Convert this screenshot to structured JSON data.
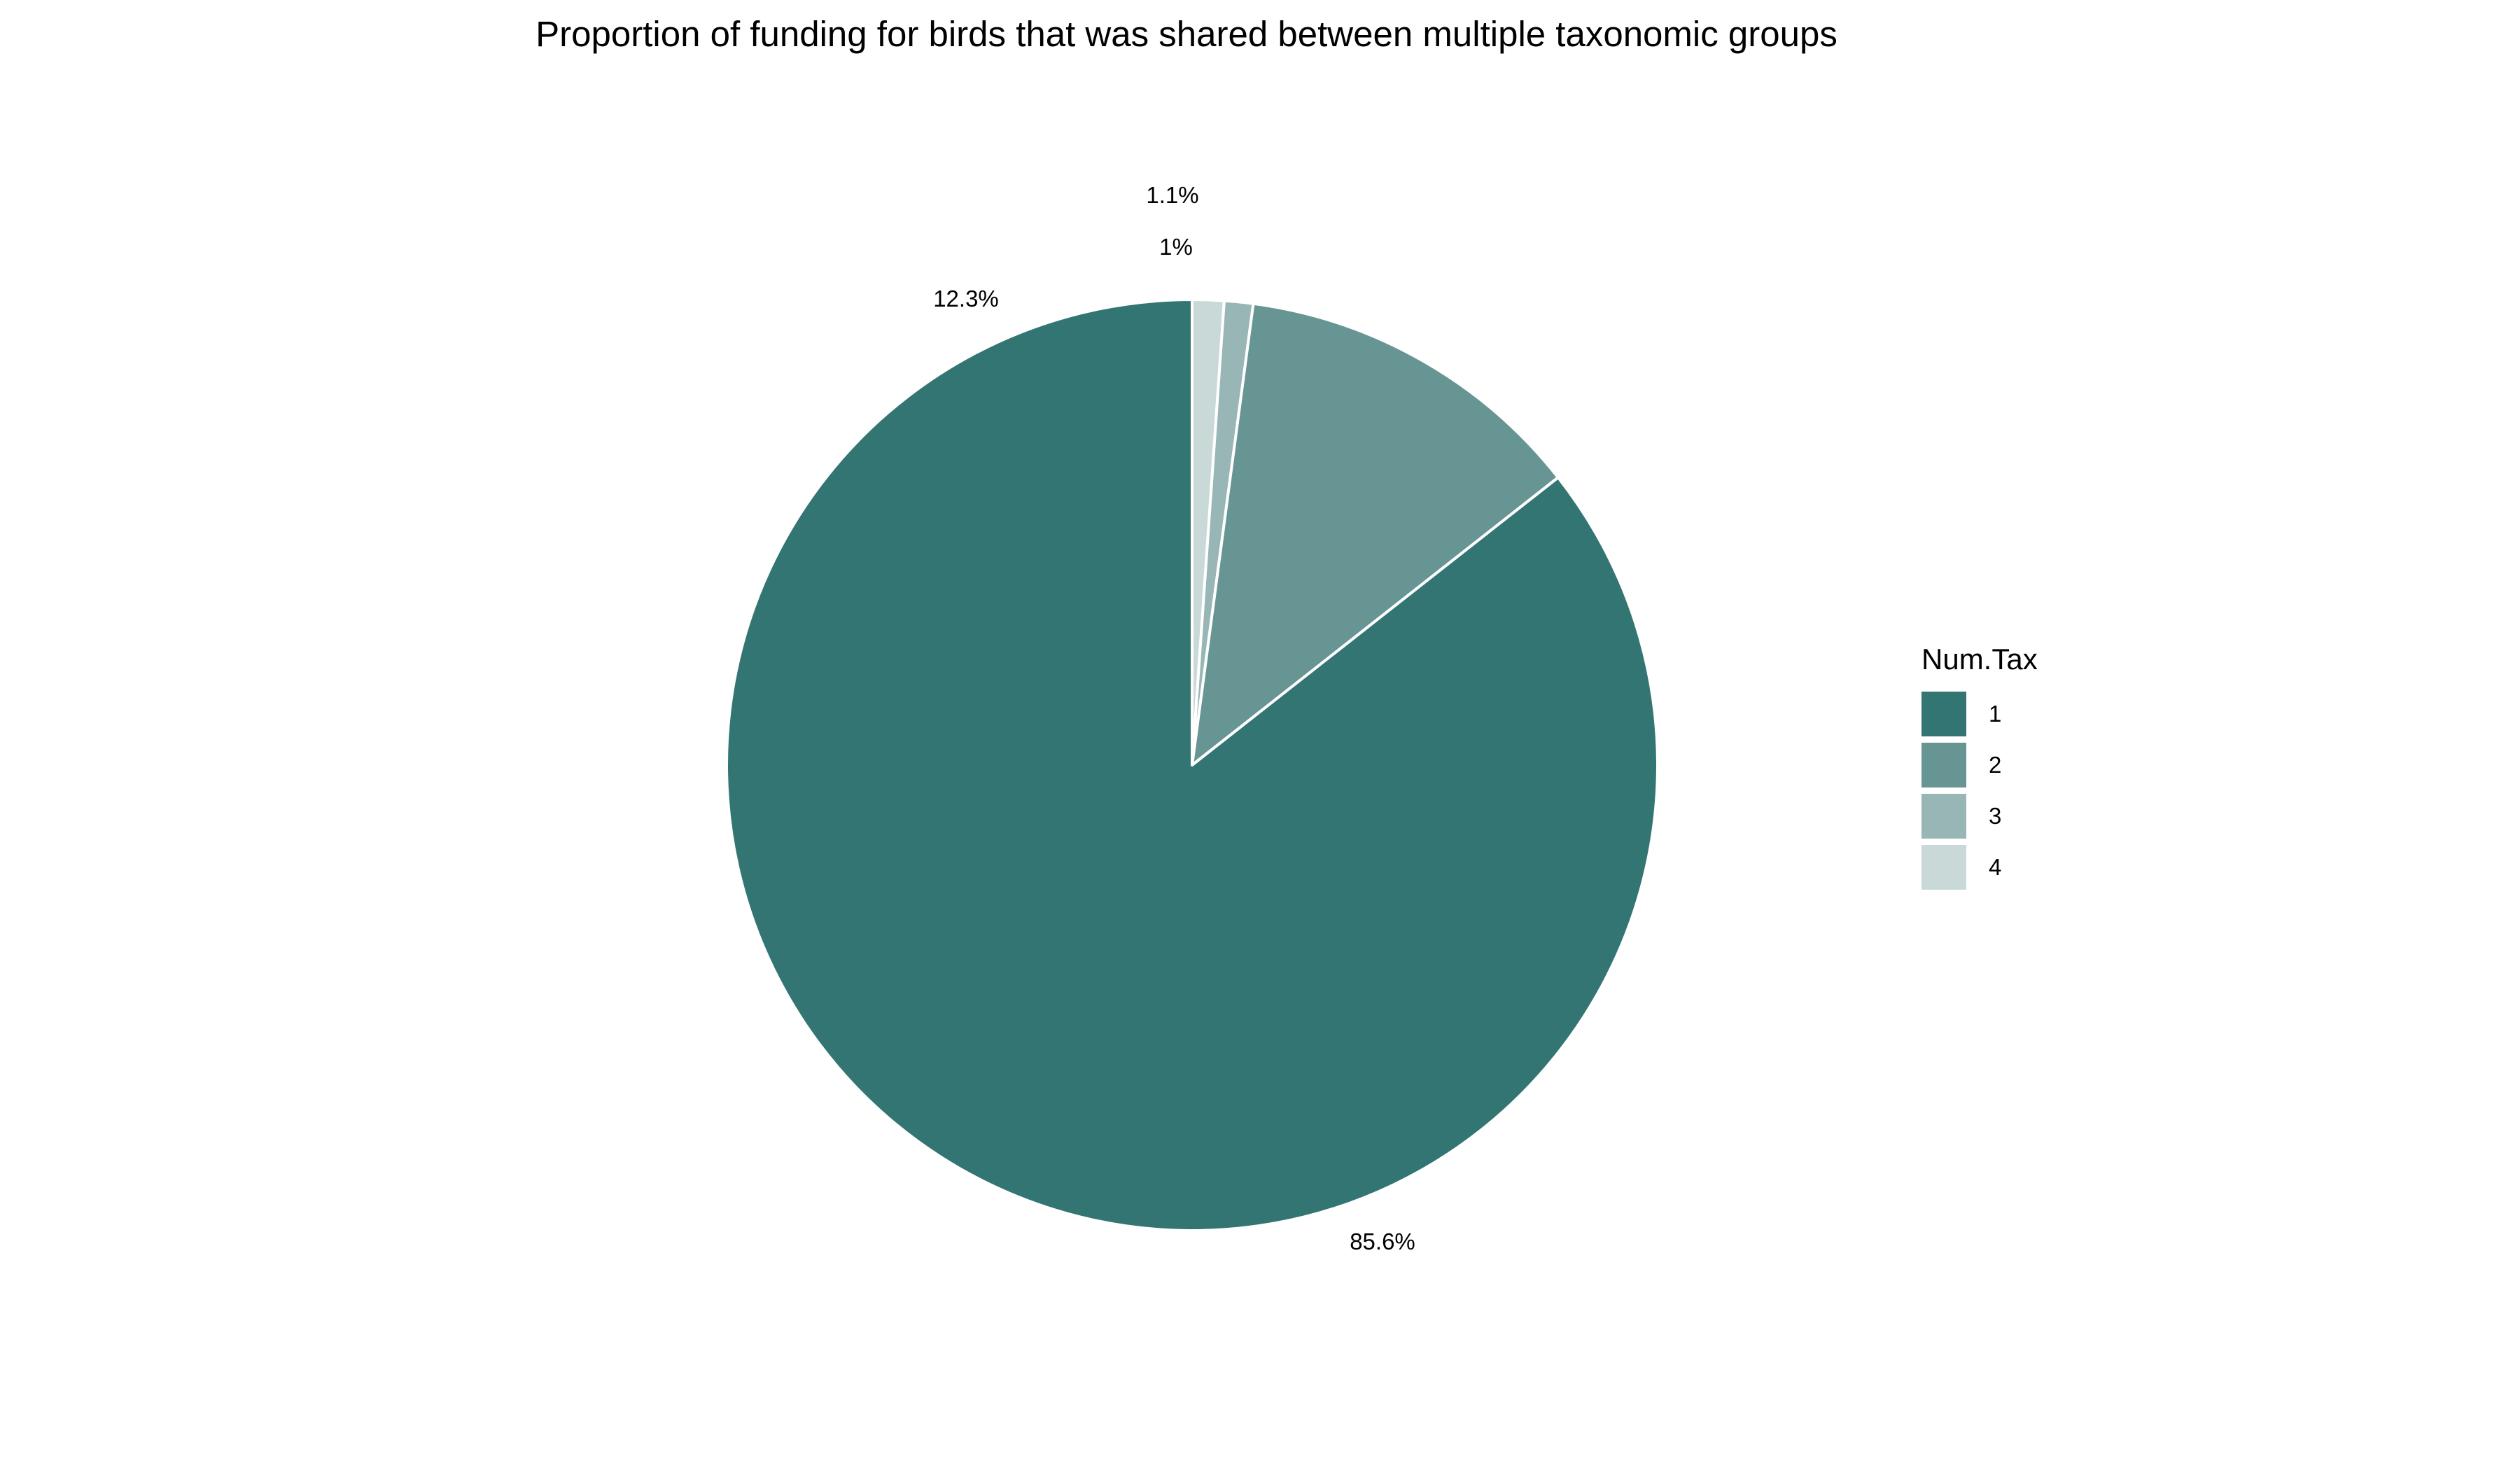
{
  "chart_data": {
    "type": "pie",
    "title": "Proportion of funding for birds that was shared between multiple taxonomic groups",
    "legend": {
      "title": "Num.Tax",
      "placement": "right"
    },
    "categories": [
      "1",
      "2",
      "3",
      "4"
    ],
    "values": [
      85.6,
      12.3,
      1.0,
      1.1
    ],
    "labels": [
      "85.6%",
      "12.3%",
      "1%",
      "1.1%"
    ],
    "colors": [
      "#327573",
      "#679593",
      "#98B6B5",
      "#C9D9D8"
    ],
    "start": "12 o'clock",
    "direction": "clockwise",
    "order": [
      "4",
      "3",
      "2",
      "1"
    ],
    "slice_border_color": "#FFFFFF"
  }
}
